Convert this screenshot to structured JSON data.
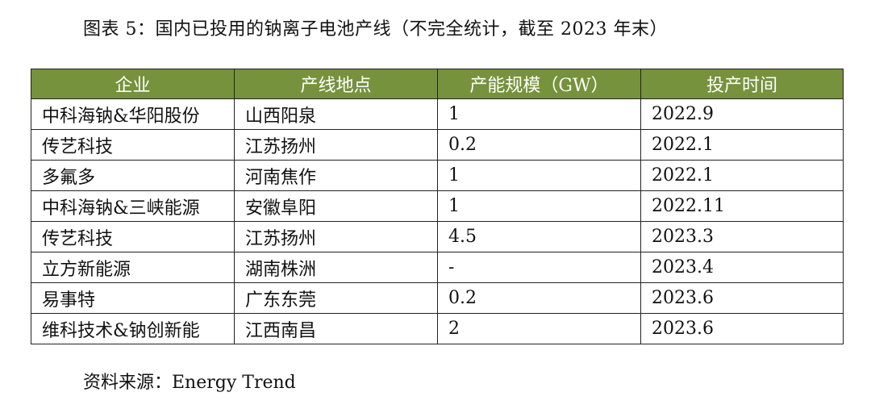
{
  "caption": "图表 5：国内已投用的钠离子电池产线（不完全统计，截至 2023 年末）",
  "table": {
    "headers": [
      "企业",
      "产线地点",
      "产能规模（GW）",
      "投产时间"
    ],
    "rows": [
      [
        "中科海钠&华阳股份",
        "山西阳泉",
        "1",
        "2022.9"
      ],
      [
        "传艺科技",
        "江苏扬州",
        "0.2",
        "2022.1"
      ],
      [
        "多氟多",
        "河南焦作",
        "1",
        "2022.1"
      ],
      [
        "中科海钠&三峡能源",
        "安徽阜阳",
        "1",
        "2022.11"
      ],
      [
        "传艺科技",
        "江苏扬州",
        "4.5",
        "2023.3"
      ],
      [
        "立方新能源",
        "湖南株洲",
        "-",
        "2023.4"
      ],
      [
        "易事特",
        "广东东莞",
        "0.2",
        "2023.6"
      ],
      [
        "维科技术&钠创新能",
        "江西南昌",
        "2",
        "2023.6"
      ]
    ]
  },
  "source": "资料来源：Energy Trend",
  "colors": {
    "header_bg": "#76923c",
    "header_text": "#ffffff",
    "border": "#222222"
  }
}
